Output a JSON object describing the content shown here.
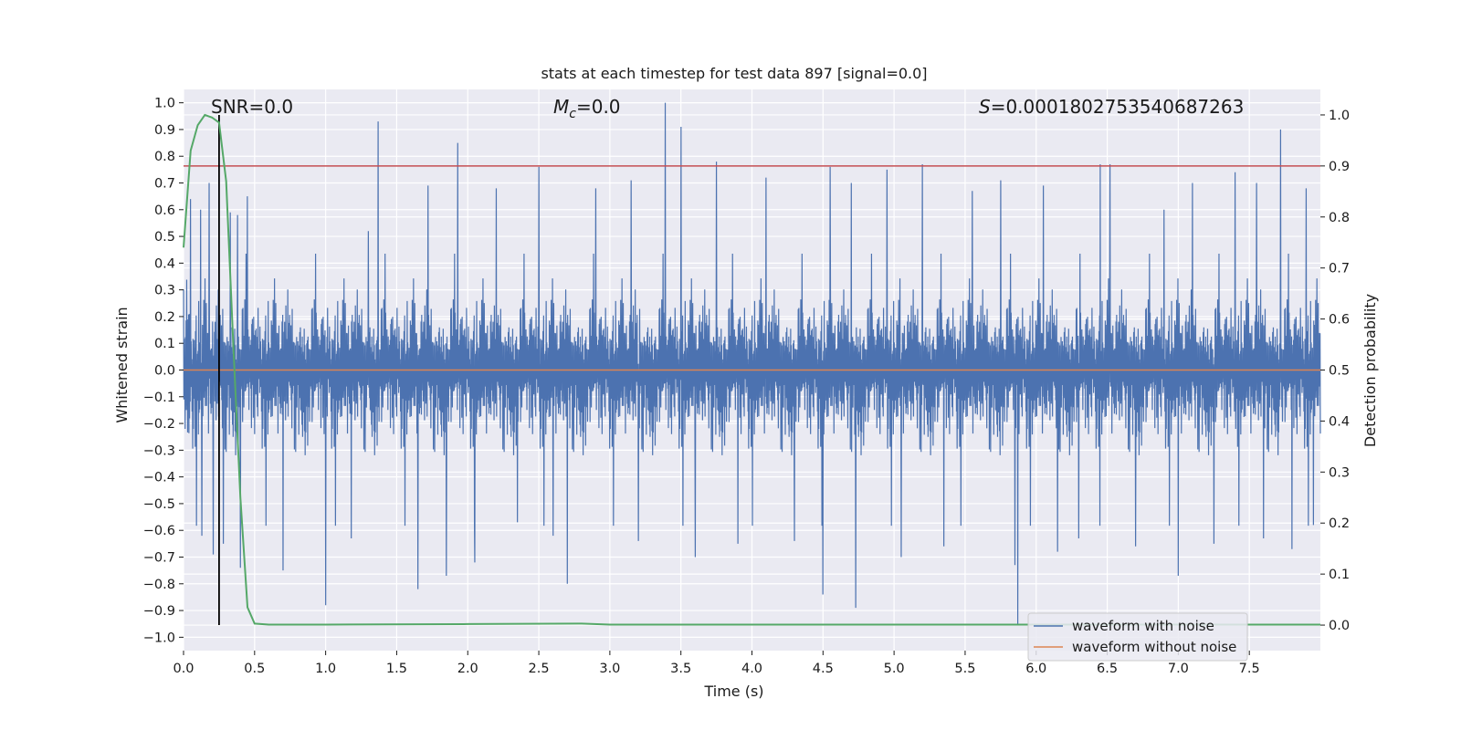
{
  "chart_data": {
    "type": "line",
    "title": "stats at each timestep for test data 897 [signal=0.0]",
    "xlabel": "Time (s)",
    "ylabel": "Whitened strain",
    "y2label": "Detection probability",
    "xlim": [
      0.0,
      8.0
    ],
    "ylim": [
      -1.05,
      1.05
    ],
    "y2lim": [
      -0.05,
      1.05
    ],
    "x_ticks": [
      0.0,
      0.5,
      1.0,
      1.5,
      2.0,
      2.5,
      3.0,
      3.5,
      4.0,
      4.5,
      5.0,
      5.5,
      6.0,
      6.5,
      7.0,
      7.5
    ],
    "x_tick_labels": [
      "0.0",
      "0.5",
      "1.0",
      "1.5",
      "2.0",
      "2.5",
      "3.0",
      "3.5",
      "4.0",
      "4.5",
      "5.0",
      "5.5",
      "6.0",
      "6.5",
      "7.0",
      "7.5"
    ],
    "y_ticks": [
      1.0,
      0.9,
      0.8,
      0.7,
      0.6,
      0.5,
      0.4,
      0.3,
      0.2,
      0.1,
      0.0,
      -0.1,
      -0.2,
      -0.3,
      -0.4,
      -0.5,
      -0.6,
      -0.7,
      -0.8,
      -0.9,
      -1.0
    ],
    "y_tick_labels": [
      "1.0",
      "0.9",
      "0.8",
      "0.7",
      "0.6",
      "0.5",
      "0.4",
      "0.3",
      "0.2",
      "0.1",
      "0.0",
      "−0.1",
      "−0.2",
      "−0.3",
      "−0.4",
      "−0.5",
      "−0.6",
      "−0.7",
      "−0.8",
      "−0.9",
      "−1.0"
    ],
    "y2_ticks": [
      1.0,
      0.9,
      0.8,
      0.7,
      0.6,
      0.5,
      0.4,
      0.3,
      0.2,
      0.1,
      0.0
    ],
    "y2_tick_labels": [
      "1.0",
      "0.9",
      "0.8",
      "0.7",
      "0.6",
      "0.5",
      "0.4",
      "0.3",
      "0.2",
      "0.1",
      "0.0"
    ],
    "annotations": {
      "snr": "SNR=0.0",
      "mc_symbol": "M",
      "mc_subscript": "c",
      "mc_value": "=0.0",
      "s_symbol": "S",
      "s_value": "=0.0001802753540687263"
    },
    "threshold_line": {
      "y2": 0.9,
      "color": "#c44e52"
    },
    "marker_line": {
      "x": 0.25,
      "color": "#000000"
    },
    "series": [
      {
        "name": "waveform with noise",
        "color": "#4c72b0",
        "axis": "left",
        "description_envelope": {
          "typical_max": 0.45,
          "typical_min": -0.45
        },
        "spikes": [
          [
            0.05,
            0.64
          ],
          [
            0.12,
            0.6
          ],
          [
            0.13,
            -0.62
          ],
          [
            0.18,
            0.7
          ],
          [
            0.21,
            -0.69
          ],
          [
            0.25,
            0.63
          ],
          [
            0.28,
            -0.65
          ],
          [
            0.33,
            0.59
          ],
          [
            0.38,
            0.58
          ],
          [
            0.4,
            -0.74
          ],
          [
            0.45,
            0.65
          ],
          [
            0.7,
            -0.75
          ],
          [
            1.0,
            -0.88
          ],
          [
            1.18,
            -0.63
          ],
          [
            1.3,
            0.52
          ],
          [
            1.37,
            0.93
          ],
          [
            1.65,
            -0.82
          ],
          [
            1.72,
            0.69
          ],
          [
            1.85,
            -0.77
          ],
          [
            1.93,
            0.85
          ],
          [
            2.05,
            -0.72
          ],
          [
            2.2,
            0.68
          ],
          [
            2.35,
            -0.57
          ],
          [
            2.5,
            0.76
          ],
          [
            2.6,
            -0.62
          ],
          [
            2.7,
            -0.8
          ],
          [
            2.9,
            0.68
          ],
          [
            3.15,
            0.71
          ],
          [
            3.2,
            -0.64
          ],
          [
            3.39,
            1.0
          ],
          [
            3.5,
            0.91
          ],
          [
            3.6,
            -0.7
          ],
          [
            3.75,
            0.78
          ],
          [
            3.9,
            -0.65
          ],
          [
            4.1,
            0.72
          ],
          [
            4.3,
            -0.64
          ],
          [
            4.5,
            -0.84
          ],
          [
            4.55,
            0.76
          ],
          [
            4.7,
            0.7
          ],
          [
            4.73,
            -0.89
          ],
          [
            4.95,
            0.75
          ],
          [
            5.05,
            -0.7
          ],
          [
            5.2,
            0.77
          ],
          [
            5.35,
            -0.66
          ],
          [
            5.55,
            0.67
          ],
          [
            5.75,
            0.71
          ],
          [
            5.85,
            -0.73
          ],
          [
            5.87,
            -0.95
          ],
          [
            6.05,
            0.69
          ],
          [
            6.15,
            -0.68
          ],
          [
            6.3,
            -0.63
          ],
          [
            6.45,
            0.77
          ],
          [
            6.52,
            0.77
          ],
          [
            6.7,
            -0.66
          ],
          [
            6.9,
            0.6
          ],
          [
            7.0,
            -0.77
          ],
          [
            7.1,
            0.7
          ],
          [
            7.25,
            -0.65
          ],
          [
            7.4,
            0.74
          ],
          [
            7.55,
            0.7
          ],
          [
            7.6,
            -0.63
          ],
          [
            7.72,
            0.9
          ],
          [
            7.8,
            -0.67
          ],
          [
            7.9,
            0.68
          ],
          [
            7.95,
            -0.58
          ]
        ]
      },
      {
        "name": "waveform without noise",
        "color": "#dd8452",
        "axis": "left",
        "value": 0.0
      },
      {
        "name": "detection probability",
        "color": "#55a868",
        "axis": "right",
        "x": [
          0.0,
          0.05,
          0.1,
          0.15,
          0.2,
          0.25,
          0.3,
          0.35,
          0.4,
          0.45,
          0.5,
          0.6,
          0.8,
          1.0,
          2.0,
          2.8,
          3.0,
          4.0,
          5.0,
          6.0,
          7.0,
          8.0
        ],
        "y": [
          0.74,
          0.93,
          0.98,
          1.0,
          0.995,
          0.985,
          0.87,
          0.55,
          0.25,
          0.035,
          0.003,
          0.001,
          0.001,
          0.001,
          0.002,
          0.003,
          0.001,
          0.001,
          0.001,
          0.001,
          0.001,
          0.001
        ]
      }
    ],
    "legend": {
      "position": "lower-right",
      "entries": [
        {
          "label": "waveform with noise",
          "color": "#4c72b0"
        },
        {
          "label": "waveform without noise",
          "color": "#dd8452"
        }
      ]
    },
    "grid": true,
    "style": {
      "plot_bg": "#eaeaf2",
      "grid_color": "#ffffff"
    }
  }
}
